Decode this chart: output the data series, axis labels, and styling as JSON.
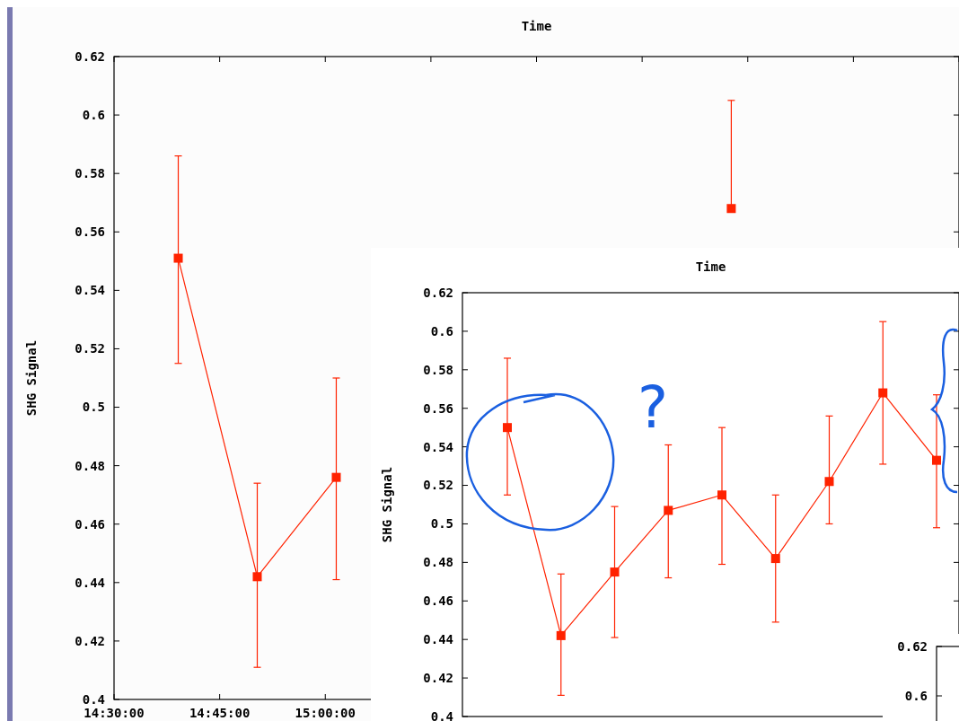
{
  "chart_data": [
    {
      "type": "line",
      "title": "Time",
      "ylabel": "SHG Signal",
      "series": [
        {
          "color": "#ff2200",
          "x": [
            14.652,
            14.839,
            15.026
          ],
          "values": [
            0.551,
            0.442,
            0.476
          ],
          "errors": [
            [
              0.515,
              0.586
            ],
            [
              0.411,
              0.474
            ],
            [
              0.441,
              0.51
            ]
          ]
        },
        {
          "color": "#ff2200",
          "x": [
            15.961
          ],
          "values": [
            0.568
          ],
          "errors": [
            [
              0.568,
              0.605
            ]
          ]
        }
      ],
      "xlim": [
        14.5,
        16.5
      ],
      "xticks": [
        {
          "value": 14.5,
          "label": "14:30:00"
        },
        {
          "value": 14.75,
          "label": "14:45:00"
        },
        {
          "value": 15,
          "label": "15:00:00"
        },
        {
          "value": 15.25,
          "label": null
        },
        {
          "value": 15.5,
          "label": null
        },
        {
          "value": 15.75,
          "label": null
        },
        {
          "value": 16,
          "label": null
        },
        {
          "value": 16.25,
          "label": null
        },
        {
          "value": 16.5,
          "label": null
        }
      ],
      "ylim": [
        0.4,
        0.62
      ],
      "yticks": [
        0.4,
        0.42,
        0.44,
        0.46,
        0.48,
        0.5,
        0.52,
        0.54,
        0.56,
        0.58,
        0.6,
        0.62
      ],
      "marker": "square"
    },
    {
      "type": "line",
      "title": "Time",
      "ylabel": "SHG Signal",
      "categories": [
        null,
        null,
        null,
        null,
        null,
        null,
        null,
        null,
        null
      ],
      "series": [
        {
          "color": "#ff2200",
          "values": [
            0.55,
            0.442,
            0.475,
            0.507,
            0.515,
            0.482,
            0.522,
            0.568,
            0.533
          ],
          "errors": [
            [
              0.515,
              0.586
            ],
            [
              0.411,
              0.474
            ],
            [
              0.441,
              0.509
            ],
            [
              0.472,
              0.541
            ],
            [
              0.479,
              0.55
            ],
            [
              0.449,
              0.515
            ],
            [
              0.5,
              0.556
            ],
            [
              0.531,
              0.605
            ],
            [
              0.498,
              0.567
            ]
          ]
        }
      ],
      "ylim": [
        0.4,
        0.62
      ],
      "yticks": [
        0.4,
        0.42,
        0.44,
        0.46,
        0.48,
        0.5,
        0.52,
        0.54,
        0.56,
        0.58,
        0.6,
        0.62
      ],
      "annotations": [
        "?"
      ],
      "marker": "square",
      "tick_labels": "y"
    },
    {
      "type": "other",
      "annotations": [
        "0.62",
        "0.6"
      ]
    }
  ]
}
